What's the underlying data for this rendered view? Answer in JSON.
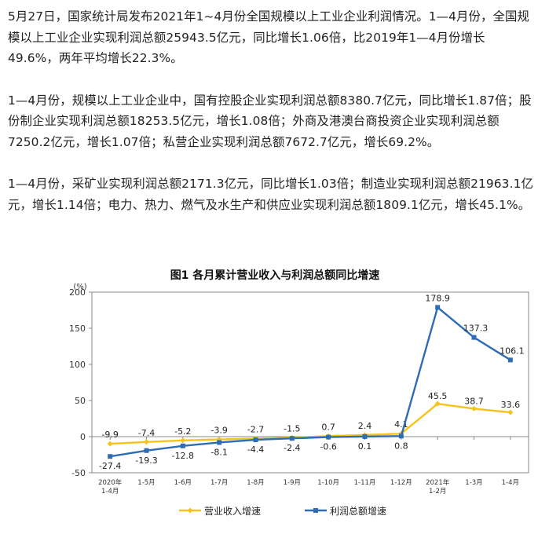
{
  "article": {
    "paragraphs": [
      "5月27日，国家统计局发布2021年1~4月份全国规模以上工业企业利润情况。1—4月份，全国规模以上工业企业实现利润总额25943.5亿元，同比增长1.06倍，比2019年1—4月份增长49.6%，两年平均增长22.3%。",
      "1—4月份，规模以上工业企业中，国有控股企业实现利润总额8380.7亿元，同比增长1.87倍；股份制企业实现利润总额18253.5亿元，增长1.08倍；外商及港澳台商投资企业实现利润总额7250.2亿元，增长1.07倍；私营企业实现利润总额7672.7亿元，增长69.2%。",
      "1—4月份，采矿业实现利润总额2171.3亿元，同比增长1.03倍；制造业实现利润总额21963.1亿元，增长1.14倍；电力、热力、燃气及水生产和供应业实现利润总额1809.1亿元，增长45.1%。"
    ]
  },
  "chart_data": {
    "type": "line",
    "title": "图1  各月累计营业收入与利润总额同比增速",
    "ylabel": "(%)",
    "ylim": [
      -50,
      200
    ],
    "yticks": [
      -50,
      0,
      50,
      100,
      150,
      200
    ],
    "categories": [
      [
        "2020年",
        "1-4月"
      ],
      [
        "1-5月"
      ],
      [
        "1-6月"
      ],
      [
        "1-7月"
      ],
      [
        "1-8月"
      ],
      [
        "1-9月"
      ],
      [
        "1-10月"
      ],
      [
        "1-11月"
      ],
      [
        "1-12月"
      ],
      [
        "2021年",
        "1-2月"
      ],
      [
        "1-3月"
      ],
      [
        "1-4月"
      ]
    ],
    "series": [
      {
        "name": "营业收入增速",
        "color": "#f5c31c",
        "marker": "diamond",
        "values": [
          -9.9,
          -7.4,
          -5.2,
          -3.9,
          -2.7,
          -1.5,
          0.7,
          2.4,
          4.1,
          45.5,
          38.7,
          33.6
        ],
        "labels": [
          "-9.9",
          "-7.4",
          "-5.2",
          "-3.9",
          "-2.7",
          "-1.5",
          "0.7",
          "2.4",
          "4.1",
          "45.5",
          "38.7",
          "33.6"
        ]
      },
      {
        "name": "利润总额增速",
        "color": "#2e6db4",
        "marker": "square",
        "values": [
          -27.4,
          -19.3,
          -12.8,
          -8.1,
          -4.4,
          -2.4,
          -0.6,
          0.1,
          0.8,
          178.9,
          137.3,
          106.1
        ],
        "labels": [
          "-27.4",
          "-19.3",
          "-12.8",
          "-8.1",
          "-4.4",
          "-2.4",
          "-0.6",
          "0.1",
          "0.8",
          "178.9",
          "137.3",
          "106.1"
        ]
      }
    ],
    "legend_position": "bottom",
    "grid": false
  }
}
